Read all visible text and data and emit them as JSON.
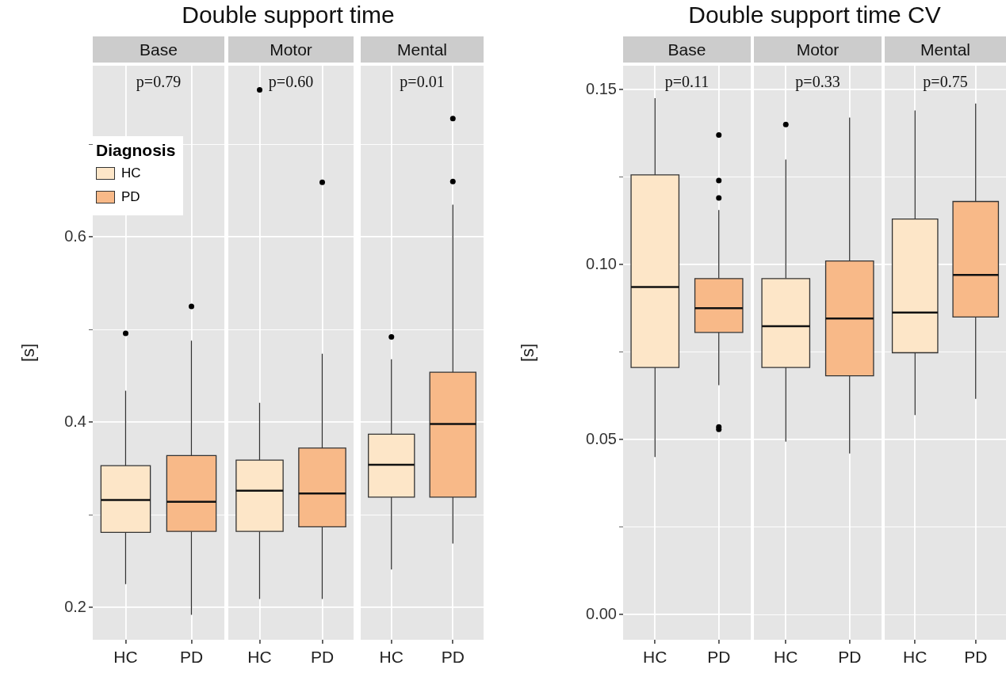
{
  "chart_data": [
    {
      "type": "box",
      "title": "Double support time",
      "subtitle": "Base",
      "ylabel": "[s]",
      "categories": [
        "HC",
        "PD"
      ],
      "legend": "top left",
      "legend_title": "Diagnosis",
      "grid": true,
      "annotations": [
        "p=0.79"
      ],
      "ylim": [
        0.165,
        0.785
      ],
      "yticks": [
        0.2,
        {
          "value": 0.3,
          "label": null
        },
        0.4,
        {
          "value": 0.5,
          "label": null
        },
        0.6,
        {
          "value": 0.7,
          "label": null
        }
      ],
      "series": [
        {
          "name": "HC",
          "color": "#fde6c8",
          "boxes": [
            {
              "low": 0.225,
              "q1": 0.281,
              "median": 0.316,
              "q3": 0.353,
              "high": 0.434,
              "outliers": [
                0.496
              ]
            },
            null
          ]
        },
        {
          "name": "PD",
          "color": "#f8b988",
          "boxes": [
            null,
            {
              "low": 0.192,
              "q1": 0.282,
              "median": 0.314,
              "q3": 0.364,
              "high": 0.488,
              "outliers": [
                0.525
              ]
            }
          ]
        }
      ]
    },
    {
      "type": "box",
      "subtitle": "Motor",
      "categories": [
        "HC",
        "PD"
      ],
      "grid": true,
      "tick_labels": "x",
      "annotations": [
        "p=0.60"
      ],
      "ylim": [
        0.165,
        0.785
      ],
      "yticks": [
        0.2,
        {
          "value": 0.3,
          "label": null
        },
        0.4,
        {
          "value": 0.5,
          "label": null
        },
        0.6,
        {
          "value": 0.7,
          "label": null
        }
      ],
      "series": [
        {
          "color": "#fde6c8",
          "boxes": [
            {
              "low": 0.209,
              "q1": 0.282,
              "median": 0.326,
              "q3": 0.359,
              "high": 0.421,
              "outliers": [
                0.759
              ]
            },
            null
          ]
        },
        {
          "color": "#f8b988",
          "boxes": [
            null,
            {
              "low": 0.209,
              "q1": 0.287,
              "median": 0.323,
              "q3": 0.372,
              "high": 0.474,
              "outliers": [
                0.659
              ]
            }
          ]
        }
      ]
    },
    {
      "type": "box",
      "subtitle": "Mental",
      "categories": [
        "HC",
        "PD"
      ],
      "grid": true,
      "tick_labels": "x",
      "annotations": [
        "p=0.01"
      ],
      "ylim": [
        0.165,
        0.785
      ],
      "yticks": [
        0.2,
        {
          "value": 0.3,
          "label": null
        },
        0.4,
        {
          "value": 0.5,
          "label": null
        },
        0.6,
        {
          "value": 0.7,
          "label": null
        }
      ],
      "series": [
        {
          "color": "#fde6c8",
          "boxes": [
            {
              "low": 0.241,
              "q1": 0.319,
              "median": 0.354,
              "q3": 0.387,
              "high": 0.468,
              "outliers": [
                0.492
              ]
            },
            null
          ]
        },
        {
          "color": "#f8b988",
          "boxes": [
            null,
            {
              "low": 0.269,
              "q1": 0.319,
              "median": 0.398,
              "q3": 0.454,
              "high": 0.635,
              "outliers": [
                0.66,
                0.728
              ]
            }
          ]
        }
      ]
    },
    {
      "type": "box",
      "title": "Double support time CV",
      "subtitle": "Base",
      "ylabel": "[s]",
      "categories": [
        "HC",
        "PD"
      ],
      "grid": true,
      "annotations": [
        "p=0.11"
      ],
      "ylim": [
        -0.0072,
        0.1568
      ],
      "yticks": [
        {
          "value": 0,
          "label": "0.00"
        },
        {
          "value": 0.025,
          "label": null
        },
        0.05,
        {
          "value": 0.075,
          "label": null
        },
        {
          "value": 0.1,
          "label": "0.10"
        },
        {
          "value": 0.125,
          "label": null
        },
        0.15
      ],
      "series": [
        {
          "color": "#fde6c8",
          "boxes": [
            {
              "low": 0.045,
              "q1": 0.0706,
              "median": 0.0936,
              "q3": 0.1256,
              "high": 0.1475
            },
            null
          ]
        },
        {
          "color": "#f8b988",
          "boxes": [
            null,
            {
              "low": 0.0655,
              "q1": 0.0806,
              "median": 0.0875,
              "q3": 0.096,
              "high": 0.1156,
              "outliers": [
                0.137,
                0.124,
                0.119,
                0.0536,
                0.0529
              ]
            }
          ]
        }
      ]
    },
    {
      "type": "box",
      "subtitle": "Motor",
      "categories": [
        "HC",
        "PD"
      ],
      "grid": true,
      "tick_labels": "x",
      "annotations": [
        "p=0.33"
      ],
      "ylim": [
        -0.0072,
        0.1568
      ],
      "yticks": [
        0,
        {
          "value": 0.025,
          "label": null
        },
        0.05,
        {
          "value": 0.075,
          "label": null
        },
        0.1,
        {
          "value": 0.125,
          "label": null
        },
        0.15
      ],
      "series": [
        {
          "color": "#fde6c8",
          "boxes": [
            {
              "low": 0.0494,
              "q1": 0.0706,
              "median": 0.0824,
              "q3": 0.096,
              "high": 0.13,
              "outliers": [
                0.14
              ]
            },
            null
          ]
        },
        {
          "color": "#f8b988",
          "boxes": [
            null,
            {
              "low": 0.046,
              "q1": 0.0682,
              "median": 0.0846,
              "q3": 0.101,
              "high": 0.142
            }
          ]
        }
      ]
    },
    {
      "type": "box",
      "subtitle": "Mental",
      "categories": [
        "HC",
        "PD"
      ],
      "grid": true,
      "tick_labels": "x",
      "annotations": [
        "p=0.75"
      ],
      "ylim": [
        -0.0072,
        0.1568
      ],
      "yticks": [
        0,
        {
          "value": 0.025,
          "label": null
        },
        0.05,
        {
          "value": 0.075,
          "label": null
        },
        0.1,
        {
          "value": 0.125,
          "label": null
        },
        0.15
      ],
      "series": [
        {
          "color": "#fde6c8",
          "boxes": [
            {
              "low": 0.057,
              "q1": 0.0748,
              "median": 0.0863,
              "q3": 0.113,
              "high": 0.144
            },
            null
          ]
        },
        {
          "color": "#f8b988",
          "boxes": [
            null,
            {
              "low": 0.0616,
              "q1": 0.085,
              "median": 0.097,
              "q3": 0.118,
              "high": 0.146
            }
          ]
        }
      ]
    }
  ]
}
